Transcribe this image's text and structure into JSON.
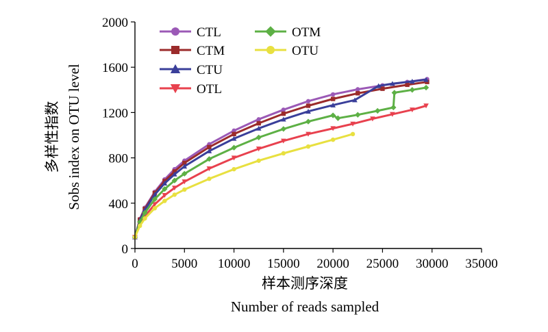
{
  "chart_data": {
    "type": "line",
    "xlabel_cn": "样本测序深度",
    "xlabel_en": "Number of reads sampled",
    "ylabel_cn": "多样性指数",
    "ylabel_en": "Sobs index on OTU level",
    "xlim": [
      0,
      35000
    ],
    "ylim": [
      0,
      2000
    ],
    "xticks": [
      "0",
      "5000",
      "10000",
      "15000",
      "20000",
      "25000",
      "30000",
      "35000"
    ],
    "yticks": [
      "0",
      "400",
      "800",
      "1200",
      "1600",
      "2000"
    ],
    "grid": false,
    "legend_position": "top-left",
    "series": [
      {
        "name": "CTL",
        "color": "#9B59B6",
        "marker": "circle",
        "x": [
          0,
          500,
          1000,
          2000,
          3000,
          4000,
          5000,
          7500,
          10000,
          12500,
          15000,
          17500,
          20000,
          22500,
          25000,
          27500,
          29500
        ],
        "y": [
          100,
          260,
          360,
          500,
          610,
          700,
          775,
          920,
          1040,
          1140,
          1225,
          1300,
          1360,
          1405,
          1440,
          1470,
          1495
        ]
      },
      {
        "name": "CTM",
        "color": "#9B2B2B",
        "marker": "square",
        "x": [
          0,
          500,
          1000,
          2000,
          3000,
          4000,
          5000,
          7500,
          10000,
          12500,
          15000,
          17500,
          20000,
          22500,
          25000,
          27500,
          29500
        ],
        "y": [
          100,
          255,
          350,
          490,
          595,
          680,
          755,
          895,
          1010,
          1105,
          1190,
          1260,
          1320,
          1370,
          1410,
          1445,
          1470
        ]
      },
      {
        "name": "CTU",
        "color": "#3A3F9A",
        "marker": "triangle-up",
        "x": [
          0,
          500,
          1000,
          2000,
          3000,
          4000,
          5000,
          7500,
          10000,
          12500,
          15000,
          17500,
          20000,
          22200,
          24600,
          26000,
          28000,
          29400
        ],
        "y": [
          100,
          250,
          340,
          475,
          575,
          655,
          725,
          860,
          970,
          1060,
          1140,
          1210,
          1265,
          1310,
          1435,
          1455,
          1475,
          1490
        ]
      },
      {
        "name": "OTL",
        "color": "#E8414E",
        "marker": "triangle-down",
        "x": [
          0,
          500,
          1000,
          2000,
          3000,
          4000,
          5000,
          7500,
          10000,
          12500,
          15000,
          17500,
          20000,
          22000,
          24000,
          26000,
          28000,
          29400
        ],
        "y": [
          100,
          215,
          285,
          390,
          470,
          535,
          590,
          705,
          800,
          880,
          950,
          1010,
          1060,
          1100,
          1145,
          1185,
          1225,
          1260
        ]
      },
      {
        "name": "OTM",
        "color": "#5DB045",
        "marker": "diamond",
        "x": [
          0,
          500,
          1000,
          2000,
          3000,
          4000,
          5000,
          7500,
          10000,
          12500,
          15000,
          17500,
          20000,
          20500,
          22500,
          24500,
          26100,
          26200,
          28000,
          29400
        ],
        "y": [
          100,
          235,
          315,
          435,
          525,
          600,
          660,
          790,
          890,
          980,
          1055,
          1120,
          1175,
          1150,
          1180,
          1215,
          1245,
          1375,
          1400,
          1420
        ]
      },
      {
        "name": "OTU",
        "color": "#E8E040",
        "marker": "circle",
        "x": [
          0,
          500,
          1000,
          2000,
          3000,
          4000,
          5000,
          7500,
          10000,
          12500,
          15000,
          17500,
          20000,
          22000
        ],
        "y": [
          100,
          200,
          265,
          355,
          420,
          475,
          520,
          615,
          700,
          775,
          840,
          900,
          960,
          1010
        ]
      }
    ]
  }
}
